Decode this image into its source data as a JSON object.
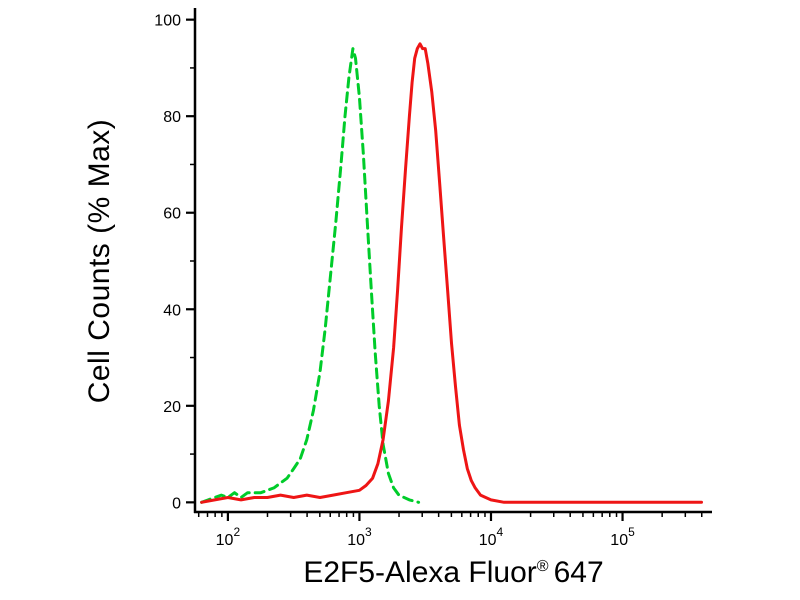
{
  "chart_data": {
    "type": "line",
    "subtype": "flow-cytometry-histogram-overlay",
    "title": "",
    "xlabel": "E2F5-Alexa Fluor® 647",
    "xlabel_parts": {
      "main": "E2F5-Alexa Fluor",
      "symbol": "®",
      "suffix": "647"
    },
    "ylabel": "Cell Counts (% Max)",
    "x_scale": "log10",
    "xlim_log10": [
      1.75,
      5.68
    ],
    "ylim": [
      -2,
      102
    ],
    "y_ticks": [
      0,
      20,
      40,
      60,
      80,
      100
    ],
    "y_minor_ticks": [
      10,
      30,
      50,
      70,
      90
    ],
    "x_ticks_exp": [
      2,
      3,
      4,
      5
    ],
    "grid": false,
    "legend": "none",
    "axis_color": "#000000",
    "background_color": "#ffffff",
    "series": [
      {
        "name": "control-green-dashed",
        "label": "green dashed histogram (peak ~94% at ~9e2)",
        "color": "#00cc2a",
        "dash": [
          9,
          6
        ],
        "points": [
          [
            1.8,
            0
          ],
          [
            1.85,
            0.5
          ],
          [
            1.95,
            1.5
          ],
          [
            2.0,
            1
          ],
          [
            2.05,
            2
          ],
          [
            2.1,
            1
          ],
          [
            2.15,
            2
          ],
          [
            2.25,
            2
          ],
          [
            2.35,
            3
          ],
          [
            2.45,
            5
          ],
          [
            2.5,
            7
          ],
          [
            2.55,
            9
          ],
          [
            2.6,
            13
          ],
          [
            2.65,
            19
          ],
          [
            2.7,
            27
          ],
          [
            2.74,
            36
          ],
          [
            2.78,
            47
          ],
          [
            2.82,
            58
          ],
          [
            2.86,
            70
          ],
          [
            2.89,
            80
          ],
          [
            2.92,
            88
          ],
          [
            2.95,
            94
          ],
          [
            2.97,
            92
          ],
          [
            3.0,
            84
          ],
          [
            3.03,
            72
          ],
          [
            3.06,
            58
          ],
          [
            3.09,
            44
          ],
          [
            3.12,
            31
          ],
          [
            3.15,
            20
          ],
          [
            3.18,
            12
          ],
          [
            3.22,
            6
          ],
          [
            3.26,
            3
          ],
          [
            3.3,
            1.5
          ],
          [
            3.38,
            0.5
          ],
          [
            3.45,
            0
          ]
        ]
      },
      {
        "name": "e2f5-red-solid",
        "label": "red solid histogram (peak ~95% at ~2.5e3)",
        "color": "#ee1515",
        "dash": null,
        "points": [
          [
            1.8,
            0
          ],
          [
            1.9,
            0.5
          ],
          [
            2.0,
            1
          ],
          [
            2.1,
            0.5
          ],
          [
            2.2,
            1
          ],
          [
            2.3,
            1
          ],
          [
            2.4,
            1.5
          ],
          [
            2.5,
            1
          ],
          [
            2.6,
            1.5
          ],
          [
            2.7,
            1
          ],
          [
            2.8,
            1.5
          ],
          [
            2.9,
            2
          ],
          [
            3.0,
            2.5
          ],
          [
            3.05,
            3.5
          ],
          [
            3.1,
            5
          ],
          [
            3.14,
            8
          ],
          [
            3.18,
            13
          ],
          [
            3.22,
            21
          ],
          [
            3.26,
            32
          ],
          [
            3.29,
            44
          ],
          [
            3.32,
            57
          ],
          [
            3.35,
            69
          ],
          [
            3.38,
            80
          ],
          [
            3.4,
            87
          ],
          [
            3.42,
            92
          ],
          [
            3.44,
            94
          ],
          [
            3.46,
            95
          ],
          [
            3.48,
            94
          ],
          [
            3.5,
            94
          ],
          [
            3.52,
            91
          ],
          [
            3.55,
            85
          ],
          [
            3.58,
            77
          ],
          [
            3.61,
            66
          ],
          [
            3.64,
            55
          ],
          [
            3.67,
            44
          ],
          [
            3.7,
            33
          ],
          [
            3.73,
            24
          ],
          [
            3.76,
            16
          ],
          [
            3.79,
            11
          ],
          [
            3.82,
            7
          ],
          [
            3.85,
            4.5
          ],
          [
            3.88,
            3
          ],
          [
            3.92,
            1.5
          ],
          [
            3.96,
            1
          ],
          [
            4.0,
            0.5
          ],
          [
            4.1,
            0
          ],
          [
            4.4,
            0
          ],
          [
            5.6,
            0
          ]
        ]
      }
    ]
  }
}
